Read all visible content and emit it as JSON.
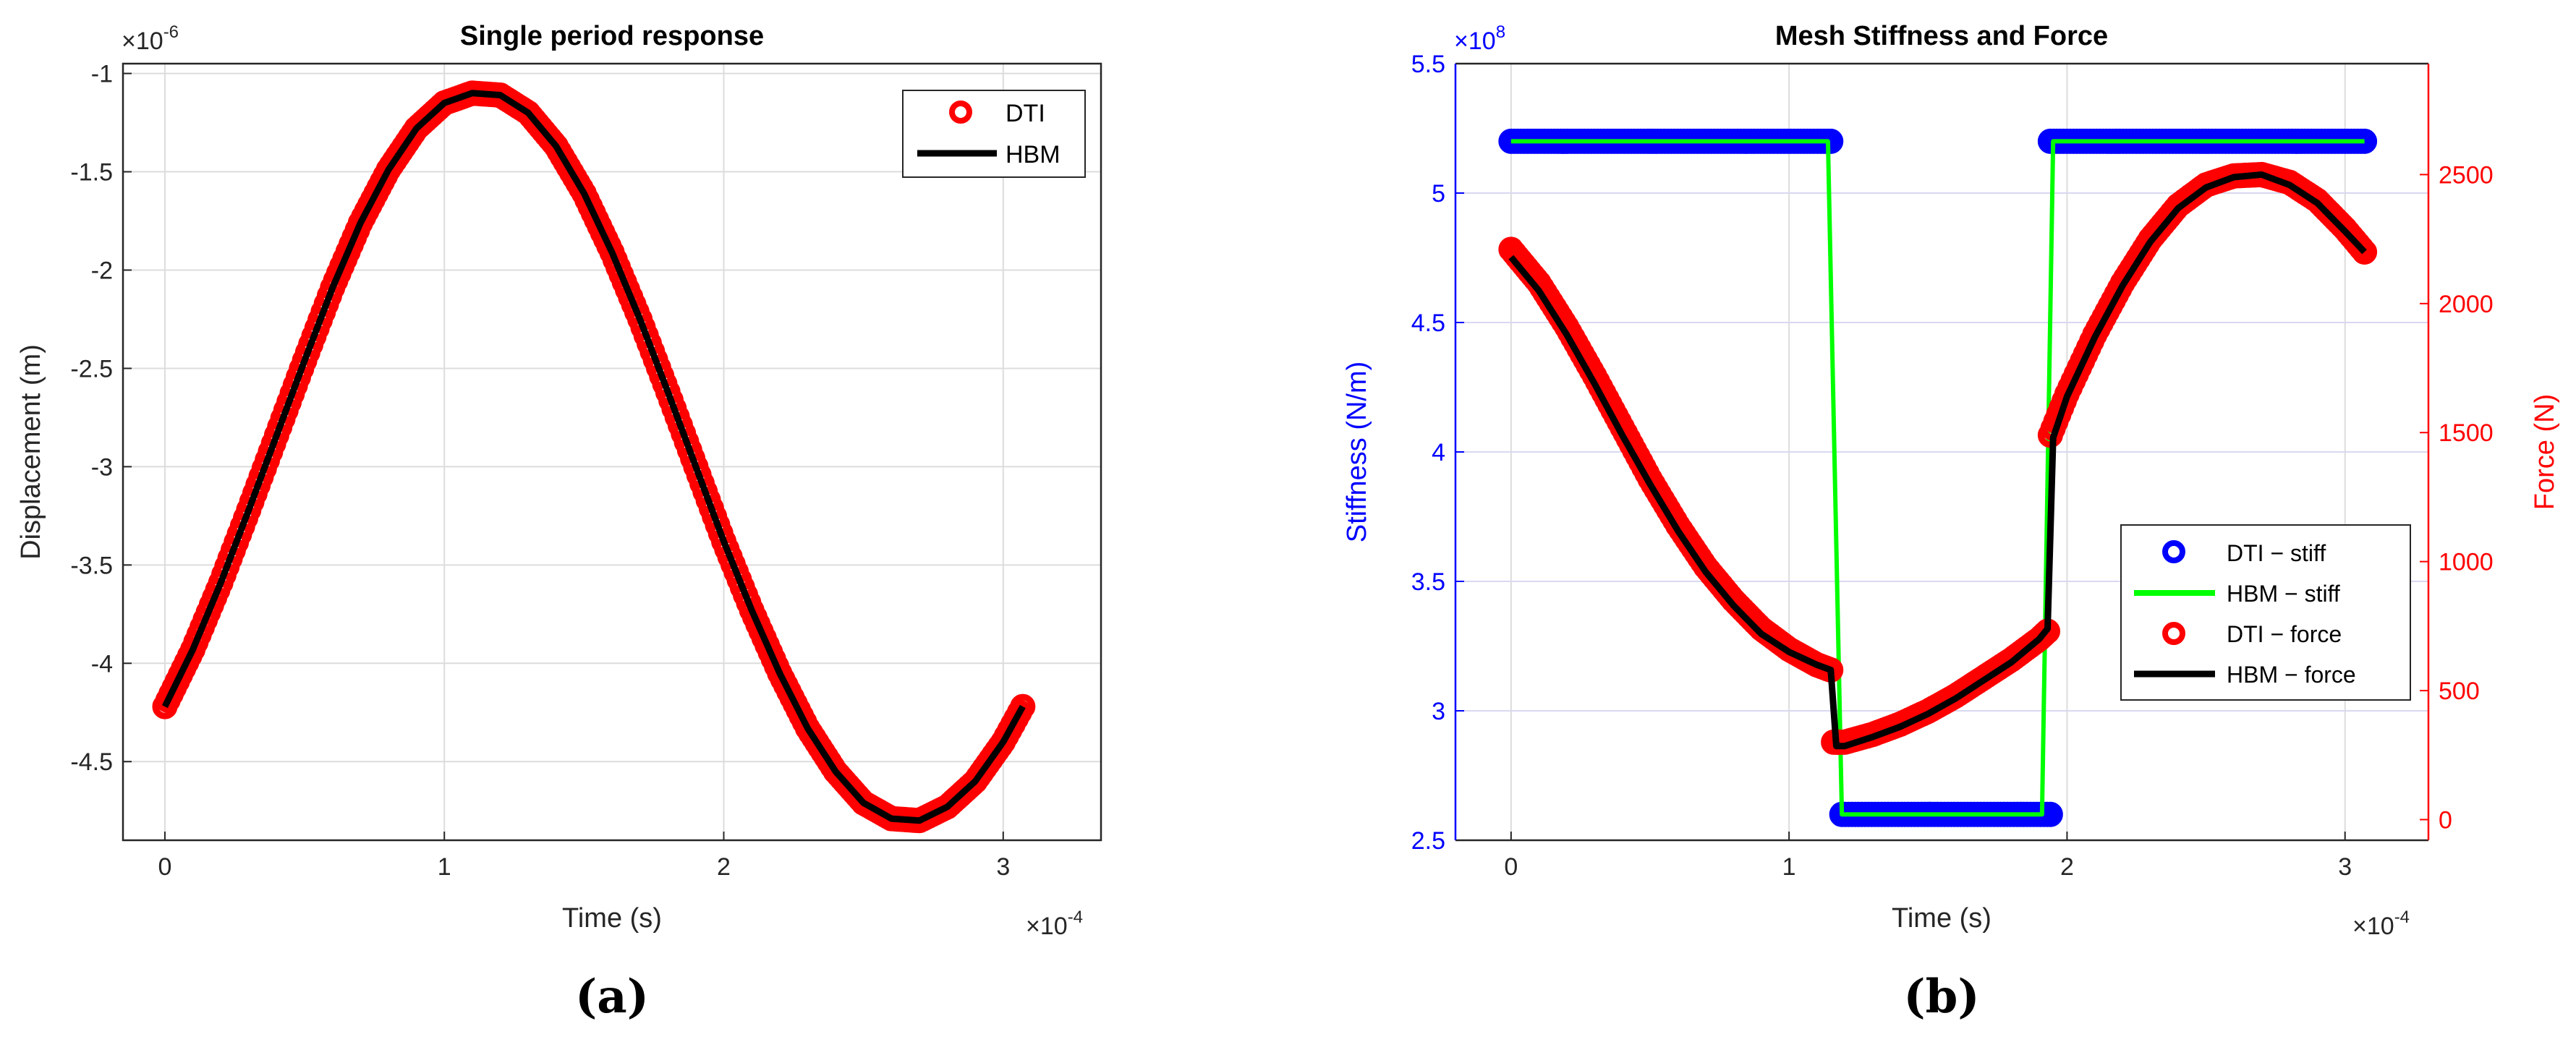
{
  "chart_data": [
    {
      "type": "line",
      "panel_label": "(a)",
      "title": "Single period response",
      "xlabel": "Time (s)",
      "ylabel": "Displacement (m)",
      "x_exponent": "×10",
      "x_exponent_power": "-4",
      "y_exponent": "×10",
      "y_exponent_power": "-6",
      "xlim": [
        -0.15,
        3.35
      ],
      "ylim": [
        -4.9,
        -0.95
      ],
      "xticks": [
        0,
        1,
        2,
        3
      ],
      "xtick_labels": [
        "0",
        "1",
        "2",
        "3"
      ],
      "yticks": [
        -4.5,
        -4,
        -3.5,
        -3,
        -2.5,
        -2,
        -1.5,
        -1
      ],
      "ytick_labels": [
        "-4.5",
        "-4",
        "-3.5",
        "-3",
        "-2.5",
        "-2",
        "-1.5",
        "-1"
      ],
      "grid": true,
      "legend_position": "top-right",
      "series": [
        {
          "name": "DTI",
          "style": "markers",
          "color": "#ff0000",
          "x": [
            0,
            0.1,
            0.2,
            0.3,
            0.4,
            0.5,
            0.6,
            0.7,
            0.8,
            0.9,
            1.0,
            1.1,
            1.2,
            1.3,
            1.4,
            1.5,
            1.6,
            1.7,
            1.8,
            1.9,
            2.0,
            2.1,
            2.2,
            2.3,
            2.4,
            2.5,
            2.6,
            2.7,
            2.8,
            2.9,
            3.0,
            3.07
          ],
          "y": [
            -4.22,
            -3.93,
            -3.59,
            -3.22,
            -2.84,
            -2.46,
            -2.09,
            -1.76,
            -1.49,
            -1.28,
            -1.15,
            -1.1,
            -1.11,
            -1.2,
            -1.37,
            -1.61,
            -1.91,
            -2.25,
            -2.62,
            -3.0,
            -3.38,
            -3.73,
            -4.05,
            -4.33,
            -4.55,
            -4.71,
            -4.79,
            -4.8,
            -4.73,
            -4.6,
            -4.4,
            -4.22
          ]
        },
        {
          "name": "HBM",
          "style": "line",
          "color": "#000000",
          "x": [
            0,
            0.1,
            0.2,
            0.3,
            0.4,
            0.5,
            0.6,
            0.7,
            0.8,
            0.9,
            1.0,
            1.1,
            1.2,
            1.3,
            1.4,
            1.5,
            1.6,
            1.7,
            1.8,
            1.9,
            2.0,
            2.1,
            2.2,
            2.3,
            2.4,
            2.5,
            2.6,
            2.7,
            2.8,
            2.9,
            3.0,
            3.07
          ],
          "y": [
            -4.22,
            -3.93,
            -3.59,
            -3.22,
            -2.84,
            -2.46,
            -2.09,
            -1.76,
            -1.49,
            -1.28,
            -1.15,
            -1.1,
            -1.11,
            -1.2,
            -1.37,
            -1.61,
            -1.91,
            -2.25,
            -2.62,
            -3.0,
            -3.38,
            -3.73,
            -4.05,
            -4.33,
            -4.55,
            -4.71,
            -4.79,
            -4.8,
            -4.73,
            -4.6,
            -4.4,
            -4.22
          ]
        }
      ]
    },
    {
      "type": "line",
      "panel_label": "(b)",
      "title": "Mesh Stiffness and Force",
      "xlabel": "Time (s)",
      "ylabel_left": "Stiffness (N/m)",
      "ylabel_right": "Force (N)",
      "x_exponent": "×10",
      "x_exponent_power": "-4",
      "y_left_exponent": "×10",
      "y_left_exponent_power": "8",
      "xlim": [
        -0.2,
        3.3
      ],
      "ylim_left": [
        2.5,
        5.5
      ],
      "ylim_right": [
        -80,
        2930
      ],
      "xticks": [
        0,
        1,
        2,
        3
      ],
      "xtick_labels": [
        "0",
        "1",
        "2",
        "3"
      ],
      "yticks_left": [
        2.5,
        3,
        3.5,
        4,
        4.5,
        5,
        5.5
      ],
      "ytick_labels_left": [
        "2.5",
        "3",
        "3.5",
        "4",
        "4.5",
        "5",
        "5.5"
      ],
      "yticks_right": [
        0,
        500,
        1000,
        1500,
        2000,
        2500
      ],
      "ytick_labels_right": [
        "0",
        "500",
        "1000",
        "1500",
        "2000",
        "2500"
      ],
      "left_axis_color": "#0000ff",
      "right_axis_color": "#ff0000",
      "grid": true,
      "legend_position": "lower-right",
      "series": [
        {
          "name": "DTI − stiff",
          "style": "markers",
          "axis": "left",
          "color": "#0000ff",
          "segments": [
            {
              "x": [
                0,
                1.15
              ],
              "y": [
                5.2,
                5.2
              ]
            },
            {
              "x": [
                1.19,
                1.94
              ],
              "y": [
                2.6,
                2.6
              ]
            },
            {
              "x": [
                1.94,
                3.07
              ],
              "y": [
                5.2,
                5.2
              ]
            }
          ]
        },
        {
          "name": "HBM − stiff",
          "style": "line",
          "axis": "left",
          "color": "#00ff00",
          "x": [
            0,
            1.14,
            1.19,
            1.91,
            1.95,
            3.07
          ],
          "y": [
            5.2,
            5.2,
            2.6,
            2.6,
            5.2,
            5.2
          ]
        },
        {
          "name": "DTI − force",
          "style": "markers",
          "axis": "right",
          "color": "#ff0000",
          "segments": [
            {
              "x": [
                0,
                0.1,
                0.2,
                0.3,
                0.4,
                0.5,
                0.6,
                0.7,
                0.8,
                0.9,
                1.0,
                1.1,
                1.15
              ],
              "y": [
                2210,
                2080,
                1910,
                1720,
                1520,
                1320,
                1140,
                980,
                850,
                740,
                660,
                600,
                580
              ]
            },
            {
              "x": [
                1.16,
                1.2,
                1.3,
                1.4,
                1.5,
                1.6,
                1.7,
                1.8,
                1.9,
                1.93
              ],
              "y": [
                300,
                300,
                330,
                370,
                420,
                480,
                550,
                620,
                700,
                730
              ]
            },
            {
              "x": [
                1.94,
                2.0,
                2.1,
                2.2,
                2.3,
                2.4,
                2.5,
                2.6,
                2.7,
                2.8,
                2.9,
                3.0,
                3.07
              ],
              "y": [
                1490,
                1650,
                1880,
                2080,
                2250,
                2380,
                2460,
                2495,
                2500,
                2470,
                2400,
                2290,
                2200
              ]
            }
          ]
        },
        {
          "name": "HBM − force",
          "style": "line",
          "axis": "right",
          "color": "#000000",
          "x": [
            0,
            0.1,
            0.2,
            0.3,
            0.4,
            0.5,
            0.6,
            0.7,
            0.8,
            0.9,
            1.0,
            1.1,
            1.15,
            1.17,
            1.2,
            1.3,
            1.4,
            1.5,
            1.6,
            1.7,
            1.8,
            1.9,
            1.93,
            1.95,
            2.0,
            2.1,
            2.2,
            2.3,
            2.4,
            2.5,
            2.6,
            2.7,
            2.8,
            2.9,
            3.0,
            3.07
          ],
          "y": [
            2180,
            2050,
            1880,
            1690,
            1490,
            1300,
            1120,
            960,
            830,
            720,
            650,
            600,
            580,
            285,
            285,
            320,
            360,
            410,
            470,
            540,
            610,
            700,
            740,
            1480,
            1640,
            1870,
            2070,
            2240,
            2370,
            2450,
            2490,
            2500,
            2460,
            2390,
            2280,
            2200
          ]
        }
      ]
    }
  ]
}
